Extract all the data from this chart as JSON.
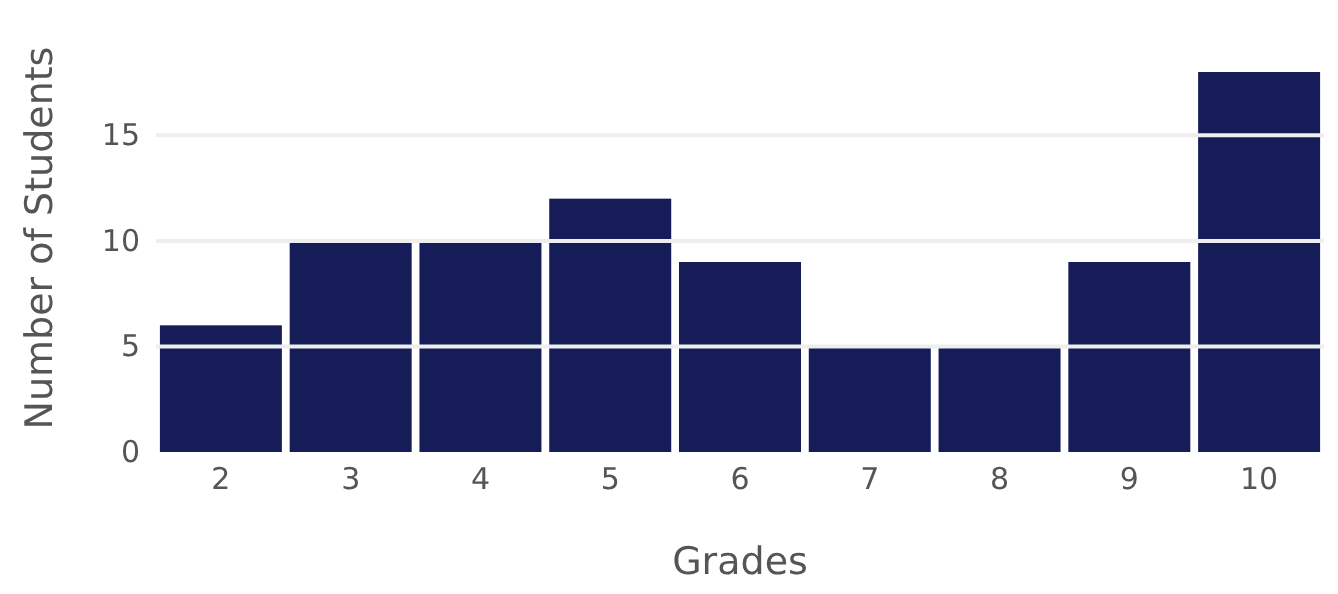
{
  "chart_data": {
    "type": "bar",
    "xlabel": "Grades",
    "ylabel": "Number of Students",
    "categories": [
      "2",
      "3",
      "4",
      "5",
      "6",
      "7",
      "8",
      "9",
      "10"
    ],
    "values": [
      6,
      10,
      10,
      12,
      9,
      5,
      5,
      9,
      18
    ],
    "color": "#161c57",
    "ylim": [
      0,
      18
    ],
    "yticks": [
      0,
      5,
      10,
      15
    ],
    "grid": "y"
  }
}
